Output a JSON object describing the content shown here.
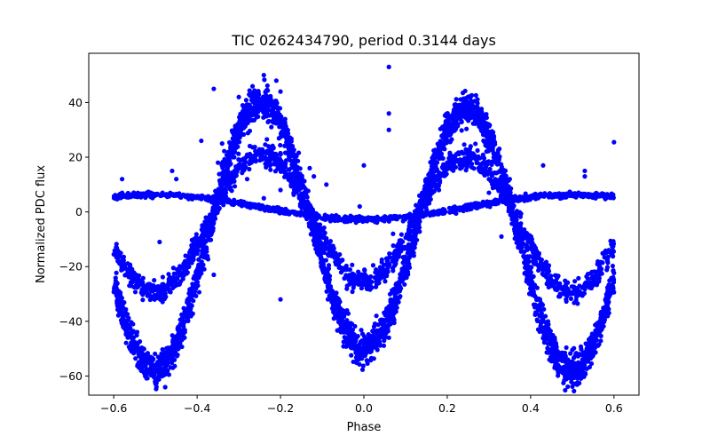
{
  "chart_data": {
    "type": "scatter",
    "title": "TIC 0262434790, period 0.3144 days",
    "xlabel": "Phase",
    "ylabel": "Normalized PDC flux",
    "xlim": [
      -0.66,
      0.66
    ],
    "ylim": [
      -67,
      58
    ],
    "xticks": [
      -0.6,
      -0.4,
      -0.2,
      0.0,
      0.2,
      0.4,
      0.6
    ],
    "xtick_labels": [
      "−0.6",
      "−0.4",
      "−0.2",
      "0.0",
      "0.2",
      "0.4",
      "0.6"
    ],
    "yticks": [
      -60,
      -40,
      -20,
      0,
      20,
      40
    ],
    "ytick_labels": [
      "−60",
      "−40",
      "−20",
      "0",
      "20",
      "40"
    ],
    "grid": false,
    "marker_color": "#0000ff",
    "period_days": 0.3144,
    "phase_range": [
      -0.6,
      0.6
    ],
    "series": [
      {
        "component": "high-amplitude eclipsing signal",
        "model": "cosine_harmonic",
        "terms": [
          {
            "harmonic": 1,
            "amplitude": 4,
            "phase_shift": 0.3
          },
          {
            "harmonic": 2,
            "amplitude": 46.5,
            "phase_shift": 3.14159
          }
        ],
        "offset": -7.5,
        "scatter": 3.0,
        "n_points": 3200
      },
      {
        "component": "medium-amplitude signal",
        "model": "cosine_harmonic",
        "terms": [
          {
            "harmonic": 1,
            "amplitude": 2,
            "phase_shift": 0.3
          },
          {
            "harmonic": 2,
            "amplitude": 24,
            "phase_shift": 3.14159
          }
        ],
        "offset": -3.5,
        "scatter": 2.0,
        "n_points": 1600
      },
      {
        "component": "low-amplitude signal",
        "model": "cosine_harmonic",
        "terms": [
          {
            "harmonic": 1,
            "amplitude": 4.5,
            "phase_shift": 3.14159
          }
        ],
        "offset": 1.8,
        "scatter": 0.5,
        "n_points": 1100
      }
    ],
    "outliers": [
      {
        "x": 0.06,
        "y": 53
      },
      {
        "x": 0.06,
        "y": 36
      },
      {
        "x": 0.06,
        "y": 30
      },
      {
        "x": -0.36,
        "y": 45
      },
      {
        "x": -0.36,
        "y": -23
      },
      {
        "x": -0.2,
        "y": -32
      },
      {
        "x": -0.58,
        "y": 12
      },
      {
        "x": -0.58,
        "y": 7
      },
      {
        "x": -0.49,
        "y": -11
      },
      {
        "x": -0.46,
        "y": 15
      },
      {
        "x": -0.45,
        "y": 12
      },
      {
        "x": -0.39,
        "y": 26
      },
      {
        "x": -0.13,
        "y": 16
      },
      {
        "x": -0.12,
        "y": 13
      },
      {
        "x": -0.09,
        "y": 10
      },
      {
        "x": 0.0,
        "y": 17
      },
      {
        "x": -0.01,
        "y": 2
      },
      {
        "x": 0.07,
        "y": -8
      },
      {
        "x": 0.12,
        "y": -16
      },
      {
        "x": 0.33,
        "y": -9
      },
      {
        "x": 0.3,
        "y": 7
      },
      {
        "x": 0.43,
        "y": 17
      },
      {
        "x": 0.53,
        "y": 13
      },
      {
        "x": 0.53,
        "y": 15
      },
      {
        "x": 0.6,
        "y": 25.5
      },
      {
        "x": -0.35,
        "y": 18
      },
      {
        "x": -0.32,
        "y": 9
      },
      {
        "x": -0.28,
        "y": 12
      },
      {
        "x": -0.24,
        "y": 5
      },
      {
        "x": -0.2,
        "y": 8
      },
      {
        "x": -0.17,
        "y": 14
      },
      {
        "x": -0.15,
        "y": 4
      },
      {
        "x": 0.15,
        "y": 12
      },
      {
        "x": 0.18,
        "y": 8
      },
      {
        "x": 0.35,
        "y": 12
      },
      {
        "x": 0.37,
        "y": 4
      },
      {
        "x": 0.21,
        "y": 0
      },
      {
        "x": 0.19,
        "y": 1
      },
      {
        "x": -0.21,
        "y": 48
      },
      {
        "x": -0.24,
        "y": 50
      },
      {
        "x": -0.2,
        "y": 44
      },
      {
        "x": -0.3,
        "y": 42
      },
      {
        "x": -0.31,
        "y": 30
      },
      {
        "x": -0.34,
        "y": 25
      },
      {
        "x": -0.27,
        "y": 18
      },
      {
        "x": 0.03,
        "y": -38
      },
      {
        "x": 0.06,
        "y": -46
      },
      {
        "x": -0.04,
        "y": -27
      },
      {
        "x": -0.06,
        "y": -32
      }
    ]
  }
}
